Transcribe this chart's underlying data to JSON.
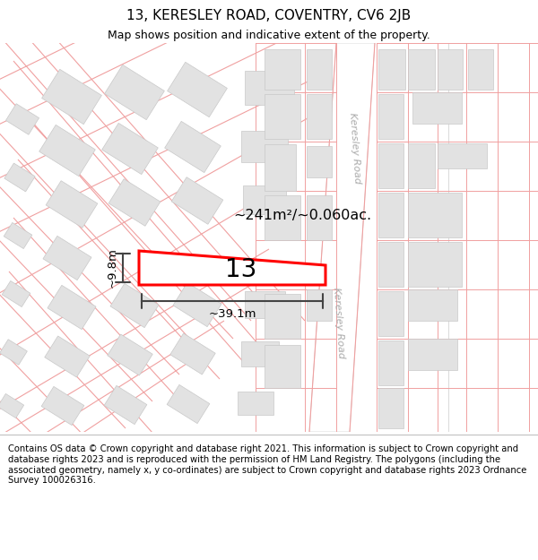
{
  "title": "13, KERESLEY ROAD, COVENTRY, CV6 2JB",
  "subtitle": "Map shows position and indicative extent of the property.",
  "area_label": "~241m²/~0.060ac.",
  "width_label": "~39.1m",
  "height_label": "~9.8m",
  "number_label": "13",
  "footer": "Contains OS data © Crown copyright and database right 2021. This information is subject to Crown copyright and database rights 2023 and is reproduced with the permission of HM Land Registry. The polygons (including the associated geometry, namely x, y co-ordinates) are subject to Crown copyright and database rights 2023 Ordnance Survey 100026316.",
  "bg_color": "#ffffff",
  "map_bg": "#ffffff",
  "block_color": "#e2e2e2",
  "block_edge": "#c8c8c8",
  "highlight_color": "#ff0000",
  "highlight_fill": "#ffffff",
  "line_color": "#444444",
  "pink_line": "#f0a0a0",
  "road_fill": "#ffffff",
  "title_fontsize": 11,
  "subtitle_fontsize": 9,
  "footer_fontsize": 7.2
}
